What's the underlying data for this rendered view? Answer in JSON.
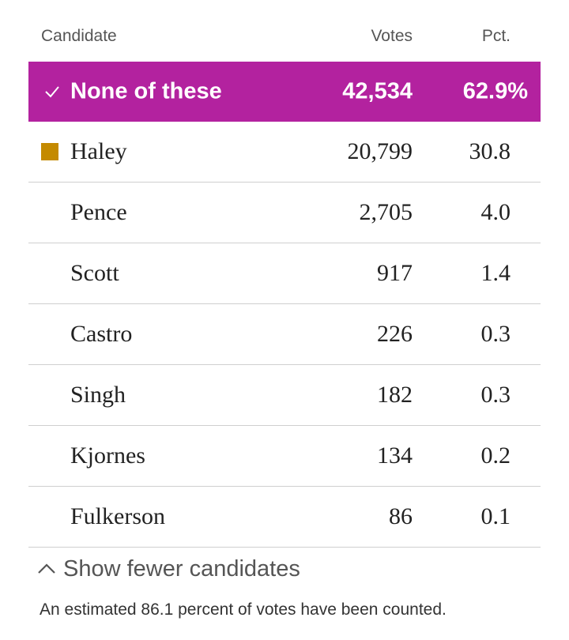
{
  "chart_data": {
    "type": "table",
    "columns": [
      "Candidate",
      "Votes",
      "Pct."
    ],
    "rows": [
      {
        "candidate": "None of these",
        "votes": "42,534",
        "pct": "62.9%",
        "winner": true,
        "color": "#b3229f"
      },
      {
        "candidate": "Haley",
        "votes": "20,799",
        "pct": "30.8",
        "color": "#c48a00"
      },
      {
        "candidate": "Pence",
        "votes": "2,705",
        "pct": "4.0"
      },
      {
        "candidate": "Scott",
        "votes": "917",
        "pct": "1.4"
      },
      {
        "candidate": "Castro",
        "votes": "226",
        "pct": "0.3"
      },
      {
        "candidate": "Singh",
        "votes": "182",
        "pct": "0.3"
      },
      {
        "candidate": "Kjornes",
        "votes": "134",
        "pct": "0.2"
      },
      {
        "candidate": "Fulkerson",
        "votes": "86",
        "pct": "0.1"
      }
    ]
  },
  "toggle": {
    "label": "Show fewer candidates",
    "icon": "chevron-up-icon"
  },
  "footnote": "An estimated 86.1 percent of votes have been counted.",
  "colors": {
    "winner_bg": "#b3229f",
    "haley_swatch": "#c48a00",
    "divider": "#cfcfcf"
  }
}
